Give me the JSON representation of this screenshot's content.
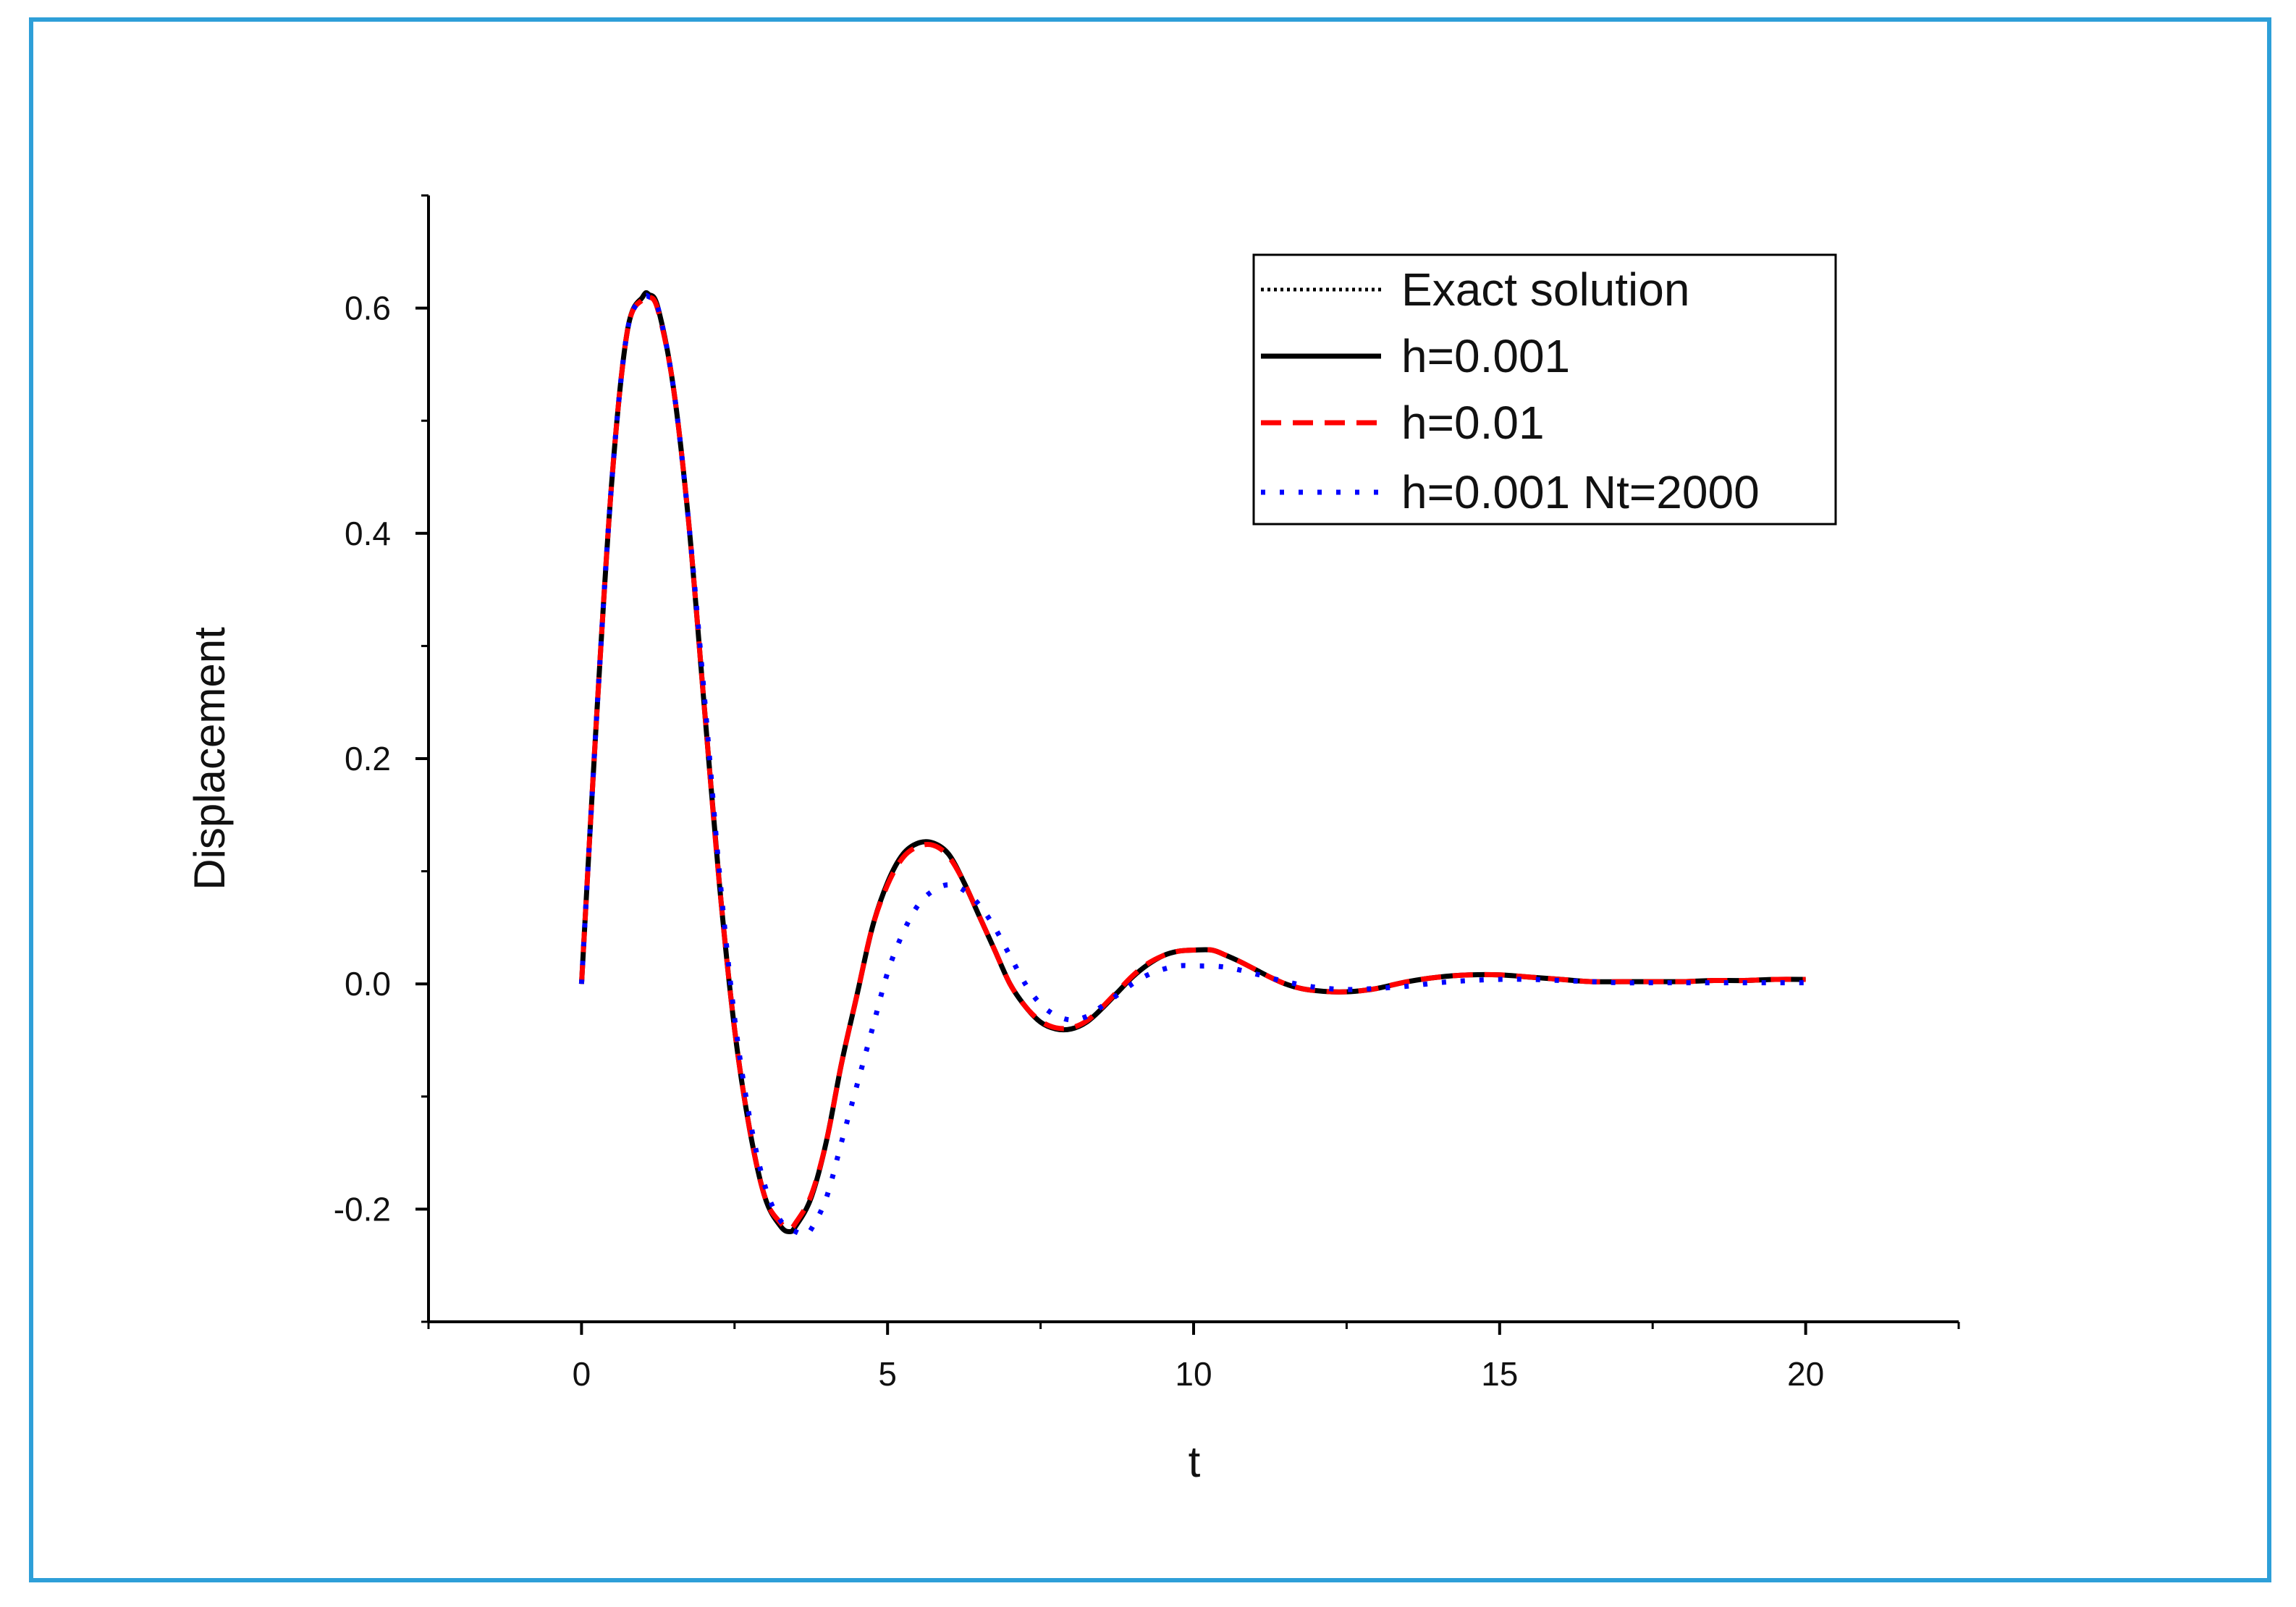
{
  "chart_data": {
    "type": "line",
    "title": "",
    "xlabel": "t",
    "ylabel": "Displacement",
    "xlim": [
      -2.5,
      22.5
    ],
    "ylim": [
      -0.3,
      0.7
    ],
    "xticks": [
      0,
      5,
      10,
      15,
      20
    ],
    "xtick_labels": [
      "0",
      "5",
      "10",
      "15",
      "20"
    ],
    "yticks": [
      -0.2,
      0.0,
      0.2,
      0.4,
      0.6
    ],
    "ytick_labels": [
      "-0.2",
      "0.0",
      "0.2",
      "0.4",
      "0.6"
    ],
    "grid": false,
    "legend_position": "top-right",
    "series": [
      {
        "name": "Exact solution",
        "style": "dotted",
        "color": "#000000",
        "x": [
          0,
          0.25,
          0.5,
          0.75,
          1.0,
          1.1,
          1.25,
          1.5,
          1.75,
          2.0,
          2.25,
          2.5,
          2.75,
          3.0,
          3.25,
          3.4,
          3.5,
          3.75,
          4.0,
          4.25,
          4.5,
          4.75,
          5.0,
          5.25,
          5.5,
          5.75,
          6.0,
          6.25,
          6.5,
          6.75,
          7.0,
          7.25,
          7.5,
          7.75,
          8.0,
          8.25,
          8.5,
          8.75,
          9.0,
          9.25,
          9.5,
          9.75,
          10.0,
          10.3,
          10.5,
          10.75,
          11.0,
          11.25,
          11.5,
          11.75,
          12.0,
          12.25,
          12.5,
          12.75,
          13.0,
          13.5,
          14.0,
          14.5,
          15.0,
          15.5,
          16.0,
          16.5,
          17.0,
          17.5,
          18.0,
          18.5,
          19.0,
          19.5,
          20.0
        ],
        "y": [
          0.0,
          0.24,
          0.45,
          0.58,
          0.61,
          0.612,
          0.6,
          0.53,
          0.41,
          0.25,
          0.09,
          -0.04,
          -0.13,
          -0.19,
          -0.215,
          -0.22,
          -0.215,
          -0.19,
          -0.14,
          -0.07,
          -0.01,
          0.05,
          0.09,
          0.115,
          0.125,
          0.125,
          0.115,
          0.09,
          0.06,
          0.03,
          0.0,
          -0.02,
          -0.034,
          -0.04,
          -0.04,
          -0.034,
          -0.022,
          -0.008,
          0.006,
          0.017,
          0.025,
          0.029,
          0.03,
          0.03,
          0.026,
          0.02,
          0.013,
          0.006,
          0.0,
          -0.004,
          -0.006,
          -0.007,
          -0.007,
          -0.006,
          -0.004,
          0.002,
          0.006,
          0.008,
          0.008,
          0.006,
          0.004,
          0.002,
          0.002,
          0.002,
          0.002,
          0.003,
          0.003,
          0.004,
          0.004
        ]
      },
      {
        "name": "h=0.001",
        "style": "solid",
        "color": "#000000",
        "x": [
          0,
          0.25,
          0.5,
          0.75,
          1.0,
          1.1,
          1.25,
          1.5,
          1.75,
          2.0,
          2.25,
          2.5,
          2.75,
          3.0,
          3.25,
          3.4,
          3.5,
          3.75,
          4.0,
          4.25,
          4.5,
          4.75,
          5.0,
          5.25,
          5.5,
          5.75,
          6.0,
          6.25,
          6.5,
          6.75,
          7.0,
          7.25,
          7.5,
          7.75,
          8.0,
          8.25,
          8.5,
          8.75,
          9.0,
          9.25,
          9.5,
          9.75,
          10.0,
          10.3,
          10.5,
          10.75,
          11.0,
          11.25,
          11.5,
          11.75,
          12.0,
          12.25,
          12.5,
          12.75,
          13.0,
          13.5,
          14.0,
          14.5,
          15.0,
          15.5,
          16.0,
          16.5,
          17.0,
          17.5,
          18.0,
          18.5,
          19.0,
          19.5,
          20.0
        ],
        "y": [
          0.0,
          0.24,
          0.45,
          0.58,
          0.61,
          0.612,
          0.6,
          0.53,
          0.41,
          0.25,
          0.09,
          -0.04,
          -0.13,
          -0.19,
          -0.215,
          -0.22,
          -0.215,
          -0.19,
          -0.14,
          -0.07,
          -0.01,
          0.05,
          0.09,
          0.115,
          0.125,
          0.125,
          0.115,
          0.09,
          0.06,
          0.03,
          0.0,
          -0.02,
          -0.034,
          -0.04,
          -0.04,
          -0.034,
          -0.022,
          -0.008,
          0.006,
          0.017,
          0.025,
          0.029,
          0.03,
          0.03,
          0.026,
          0.02,
          0.013,
          0.006,
          0.0,
          -0.004,
          -0.006,
          -0.007,
          -0.007,
          -0.006,
          -0.004,
          0.002,
          0.006,
          0.008,
          0.008,
          0.006,
          0.004,
          0.002,
          0.002,
          0.002,
          0.002,
          0.003,
          0.003,
          0.004,
          0.004
        ]
      },
      {
        "name": "h=0.01",
        "style": "dashed",
        "color": "#ff0000",
        "x": [
          0,
          0.25,
          0.5,
          0.75,
          1.0,
          1.1,
          1.25,
          1.5,
          1.75,
          2.0,
          2.25,
          2.5,
          2.75,
          3.0,
          3.25,
          3.4,
          3.5,
          3.75,
          4.0,
          4.25,
          4.5,
          4.75,
          5.0,
          5.25,
          5.5,
          5.75,
          6.0,
          6.25,
          6.5,
          6.75,
          7.0,
          7.25,
          7.5,
          7.75,
          8.0,
          8.25,
          8.5,
          8.75,
          9.0,
          9.25,
          9.5,
          9.75,
          10.0,
          10.3,
          10.5,
          10.75,
          11.0,
          11.25,
          11.5,
          11.75,
          12.0,
          12.25,
          12.5,
          12.75,
          13.0,
          13.5,
          14.0,
          14.5,
          15.0,
          15.5,
          16.0,
          16.5,
          17.0,
          17.5,
          18.0,
          18.5,
          19.0,
          19.5,
          20.0
        ],
        "y": [
          0.0,
          0.24,
          0.45,
          0.58,
          0.608,
          0.61,
          0.598,
          0.53,
          0.41,
          0.25,
          0.09,
          -0.04,
          -0.13,
          -0.19,
          -0.212,
          -0.217,
          -0.212,
          -0.188,
          -0.14,
          -0.07,
          -0.01,
          0.05,
          0.088,
          0.112,
          0.122,
          0.123,
          0.113,
          0.09,
          0.06,
          0.03,
          0.0,
          -0.02,
          -0.033,
          -0.039,
          -0.039,
          -0.033,
          -0.021,
          -0.007,
          0.007,
          0.018,
          0.025,
          0.029,
          0.03,
          0.03,
          0.026,
          0.02,
          0.013,
          0.006,
          0.0,
          -0.004,
          -0.006,
          -0.007,
          -0.007,
          -0.006,
          -0.004,
          0.002,
          0.006,
          0.008,
          0.008,
          0.006,
          0.004,
          0.002,
          0.002,
          0.002,
          0.002,
          0.003,
          0.003,
          0.004,
          0.004
        ]
      },
      {
        "name": "h=0.001 Nt=2000",
        "style": "dotted",
        "color": "#0000ff",
        "x": [
          0,
          0.25,
          0.5,
          0.75,
          1.0,
          1.1,
          1.25,
          1.5,
          1.75,
          2.0,
          2.25,
          2.5,
          2.75,
          3.0,
          3.25,
          3.5,
          3.65,
          3.75,
          4.0,
          4.25,
          4.5,
          4.75,
          5.0,
          5.25,
          5.5,
          5.75,
          6.0,
          6.25,
          6.5,
          6.75,
          7.0,
          7.25,
          7.5,
          7.75,
          8.0,
          8.25,
          8.5,
          8.75,
          9.0,
          9.25,
          9.5,
          9.75,
          10.0,
          10.5,
          11.0,
          11.5,
          12.0,
          12.5,
          13.0,
          13.5,
          14.0,
          14.5,
          15.0,
          15.5,
          16.0,
          16.5,
          17.0,
          17.5,
          18.0,
          18.5,
          19.0,
          19.5,
          20.0
        ],
        "y": [
          0.0,
          0.24,
          0.45,
          0.58,
          0.608,
          0.61,
          0.6,
          0.53,
          0.41,
          0.26,
          0.1,
          -0.03,
          -0.12,
          -0.18,
          -0.21,
          -0.22,
          -0.222,
          -0.218,
          -0.19,
          -0.14,
          -0.09,
          -0.04,
          0.01,
          0.045,
          0.07,
          0.083,
          0.088,
          0.083,
          0.07,
          0.05,
          0.025,
          0.0,
          -0.018,
          -0.028,
          -0.032,
          -0.029,
          -0.02,
          -0.01,
          0.0,
          0.008,
          0.013,
          0.016,
          0.016,
          0.015,
          0.009,
          0.002,
          -0.003,
          -0.005,
          -0.004,
          -0.002,
          0.001,
          0.003,
          0.004,
          0.004,
          0.003,
          0.002,
          0.001,
          0.001,
          0.001,
          0.001,
          0.001,
          0.001,
          0.001
        ]
      }
    ]
  }
}
